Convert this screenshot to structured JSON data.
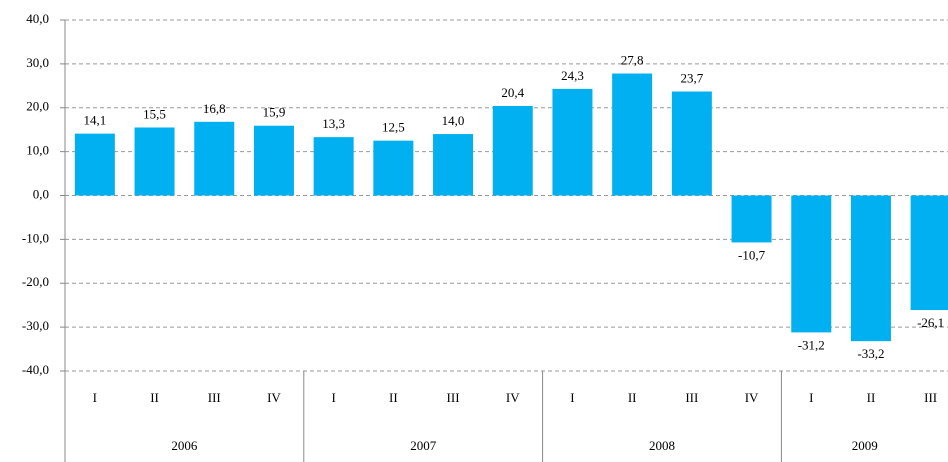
{
  "chart_data": {
    "type": "bar",
    "groups": [
      {
        "label": "2006",
        "categories": [
          "I",
          "II",
          "III",
          "IV"
        ]
      },
      {
        "label": "2007",
        "categories": [
          "I",
          "II",
          "III",
          "IV"
        ]
      },
      {
        "label": "2008",
        "categories": [
          "I",
          "II",
          "III",
          "IV"
        ]
      },
      {
        "label": "2009",
        "categories": [
          "I",
          "II",
          "III"
        ]
      }
    ],
    "values": [
      14.1,
      15.5,
      16.8,
      15.9,
      13.3,
      12.5,
      14.0,
      20.4,
      24.3,
      27.8,
      23.7,
      -10.7,
      -31.2,
      -33.2,
      -26.1
    ],
    "value_labels": [
      "14,1",
      "15,5",
      "16,8",
      "15,9",
      "13,3",
      "12,5",
      "14,0",
      "20,4",
      "24,3",
      "27,8",
      "23,7",
      "-10,7",
      "-31,2",
      "-33,2",
      "-26,1"
    ],
    "color": "#00b0f0",
    "ylim": [
      -40,
      40
    ],
    "yticks": [
      {
        "value": -40,
        "label": "-40,0"
      },
      {
        "value": -30,
        "label": "-30,0"
      },
      {
        "value": -20,
        "label": "-20,0"
      },
      {
        "value": -10,
        "label": "-10,0"
      },
      {
        "value": 0,
        "label": "0,0"
      },
      {
        "value": 10,
        "label": "10,0"
      },
      {
        "value": 20,
        "label": "20,0"
      },
      {
        "value": 30,
        "label": "30,0"
      },
      {
        "value": 40,
        "label": "40,0"
      }
    ],
    "grid": true
  }
}
